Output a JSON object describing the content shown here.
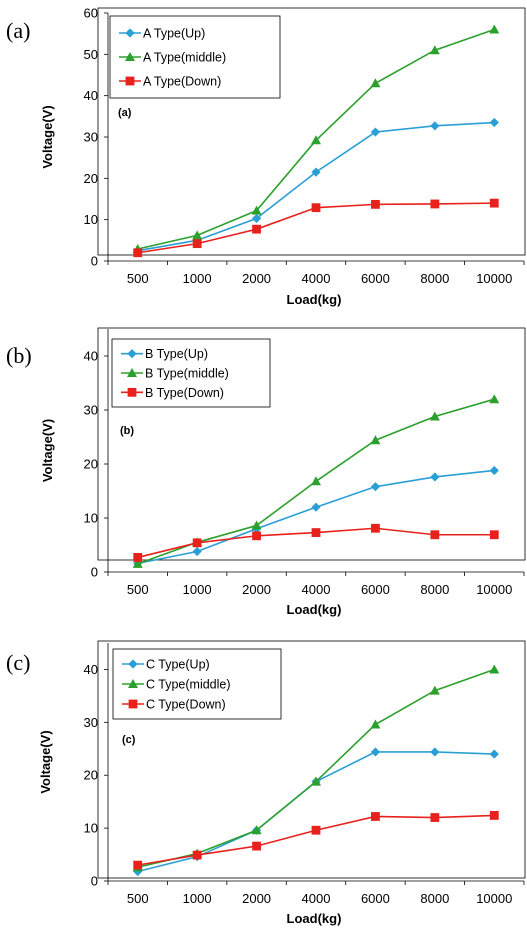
{
  "chart_data": [
    {
      "type": "line",
      "panel_label": "(a)",
      "inner_label": "(a)",
      "categories": [
        "500",
        "1000",
        "2000",
        "4000",
        "6000",
        "8000",
        "10000"
      ],
      "xlabel": "Load(kg)",
      "ylabel": "Voltage(V)",
      "ylim": [
        0,
        60
      ],
      "yticks": [
        0,
        10,
        20,
        30,
        40,
        50,
        60
      ],
      "legend_position": "top-left",
      "series": [
        {
          "name": "A Type(Up)",
          "color": "#2a9fd6",
          "marker": "diamond",
          "values": [
            2.5,
            5.0,
            10.3,
            21.5,
            31.2,
            32.7,
            33.5
          ]
        },
        {
          "name": "A Type(middle)",
          "color": "#2ca02c",
          "marker": "triangle",
          "values": [
            2.9,
            6.2,
            12.2,
            29.2,
            43.0,
            51.0,
            56.0
          ]
        },
        {
          "name": "A Type(Down)",
          "color": "#e8211d",
          "marker": "square",
          "values": [
            2.0,
            4.2,
            7.7,
            12.9,
            13.7,
            13.8,
            14.0
          ]
        }
      ]
    },
    {
      "type": "line",
      "panel_label": "(b)",
      "inner_label": "(b)",
      "categories": [
        "500",
        "1000",
        "2000",
        "4000",
        "6000",
        "8000",
        "10000"
      ],
      "xlabel": "Load(kg)",
      "ylabel": "Voltage(V)",
      "ylim": [
        0,
        45
      ],
      "yticks": [
        0,
        10,
        20,
        30,
        40
      ],
      "legend_position": "top-left",
      "series": [
        {
          "name": "B Type(Up)",
          "color": "#2a9fd6",
          "marker": "diamond",
          "values": [
            1.6,
            3.8,
            8.0,
            12.0,
            15.8,
            17.6,
            18.8
          ]
        },
        {
          "name": "B Type(middle)",
          "color": "#2ca02c",
          "marker": "triangle",
          "values": [
            1.5,
            5.5,
            8.6,
            16.8,
            24.4,
            28.8,
            32.0
          ]
        },
        {
          "name": "B Type(Down)",
          "color": "#e8211d",
          "marker": "square",
          "values": [
            2.7,
            5.4,
            6.7,
            7.3,
            8.1,
            6.9,
            6.9
          ]
        }
      ]
    },
    {
      "type": "line",
      "panel_label": "(c)",
      "inner_label": "(c)",
      "categories": [
        "500",
        "1000",
        "2000",
        "4000",
        "6000",
        "8000",
        "10000"
      ],
      "xlabel": "Load(kg)",
      "ylabel": "Voltage(V)",
      "ylim": [
        0,
        45
      ],
      "yticks": [
        0,
        10,
        20,
        30,
        40
      ],
      "legend_position": "top-left",
      "series": [
        {
          "name": "C Type(Up)",
          "color": "#2a9fd6",
          "marker": "diamond",
          "values": [
            1.8,
            4.6,
            9.6,
            18.8,
            24.4,
            24.4,
            24.0
          ]
        },
        {
          "name": "C Type(middle)",
          "color": "#2ca02c",
          "marker": "triangle",
          "values": [
            2.6,
            5.2,
            9.6,
            18.8,
            29.6,
            36.0,
            40.0
          ]
        },
        {
          "name": "C Type(Down)",
          "color": "#e8211d",
          "marker": "square",
          "values": [
            3.0,
            4.9,
            6.6,
            9.6,
            12.2,
            12.0,
            12.4
          ]
        }
      ]
    }
  ]
}
